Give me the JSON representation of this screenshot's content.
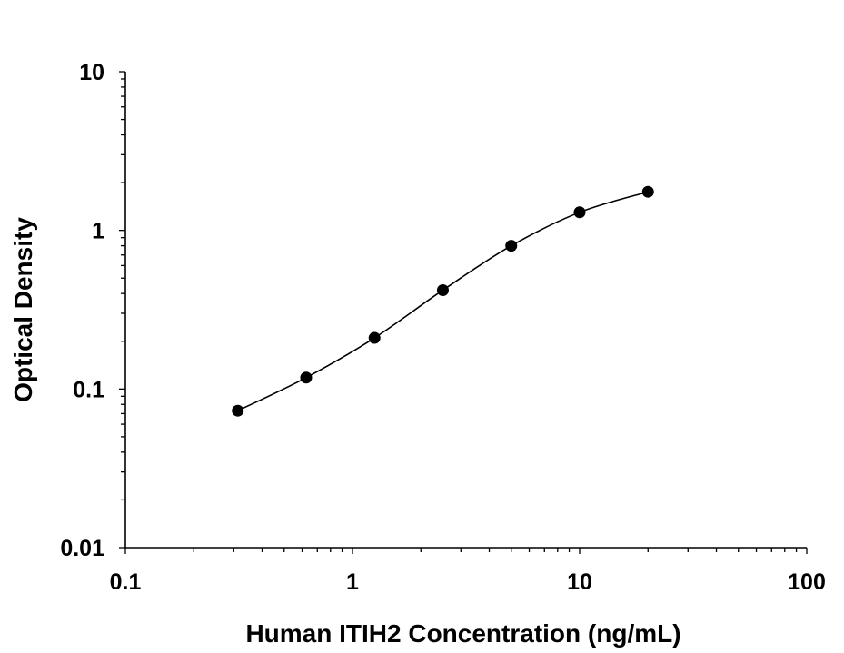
{
  "chart_data": {
    "type": "scatter",
    "title": "",
    "xlabel": "Human ITIH2 Concentration (ng/mL)",
    "ylabel": "Optical Density",
    "xscale": "log",
    "yscale": "log",
    "xlim": [
      0.1,
      100
    ],
    "ylim": [
      0.01,
      10
    ],
    "x_ticks": [
      {
        "value": 0.1,
        "label": "0.1"
      },
      {
        "value": 1,
        "label": "1"
      },
      {
        "value": 10,
        "label": "10"
      },
      {
        "value": 100,
        "label": "100"
      }
    ],
    "y_ticks": [
      {
        "value": 0.01,
        "label": "0.01"
      },
      {
        "value": 0.1,
        "label": "0.1"
      },
      {
        "value": 1,
        "label": "1"
      },
      {
        "value": 10,
        "label": "10"
      }
    ],
    "grid": false,
    "legend": "none",
    "marker_color": "#000000",
    "line_color": "#000000",
    "fit": "smooth curve through points",
    "series": [
      {
        "x": [
          0.3125,
          0.625,
          1.25,
          2.5,
          5,
          10,
          20
        ],
        "y": [
          0.073,
          0.118,
          0.21,
          0.42,
          0.8,
          1.3,
          1.75
        ]
      }
    ]
  }
}
